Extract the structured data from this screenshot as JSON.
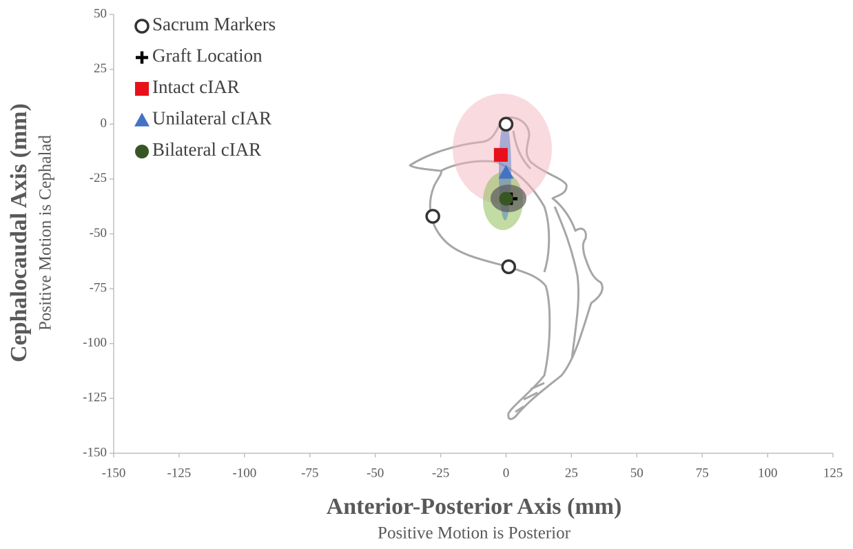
{
  "chart_data": {
    "type": "scatter",
    "x_label": "Anterior-Posterior Axis (mm)",
    "x_sublabel": "Positive Motion is Posterior",
    "y_label": "Cephalocaudal Axis (mm)",
    "y_sublabel": "Positive Motion is Cephalad",
    "xlim": [
      -150,
      125
    ],
    "xticks": [
      -150,
      -125,
      -100,
      -75,
      -50,
      -25,
      0,
      25,
      50,
      75,
      100,
      125
    ],
    "ylim": [
      -150,
      50
    ],
    "yticks": [
      -150,
      -125,
      -100,
      -75,
      -50,
      -25,
      0,
      25,
      50
    ],
    "legend": "top-left",
    "series": [
      {
        "name": "Sacrum Markers",
        "marker": "open-circle",
        "color": "#333333",
        "x": [
          0,
          -28,
          1
        ],
        "values": [
          0,
          -42,
          -65
        ]
      },
      {
        "name": "Graft Location",
        "marker": "cross",
        "color": "#000000",
        "x": [
          2
        ],
        "values": [
          -34
        ]
      },
      {
        "name": "Intact cIAR",
        "marker": "square",
        "color": "#e8101a",
        "x": [
          -2
        ],
        "values": [
          -14
        ]
      },
      {
        "name": "Unilateral cIAR",
        "marker": "triangle",
        "color": "#4472c4",
        "x": [
          0
        ],
        "values": [
          -22
        ]
      },
      {
        "name": "Bilateral cIAR",
        "marker": "circle",
        "color": "#375623",
        "x": [
          0
        ],
        "values": [
          -34
        ]
      }
    ]
  }
}
